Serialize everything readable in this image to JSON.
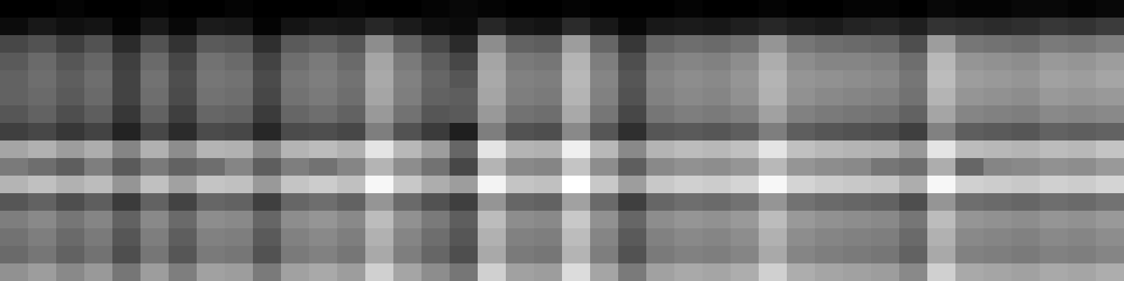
{
  "chart_data": {
    "type": "heatmap",
    "tick_labels": false,
    "grid": false,
    "cells": [
      [
        2,
        2,
        3,
        2,
        2,
        3,
        2,
        2,
        3,
        2,
        2,
        2,
        3,
        2,
        2,
        3,
        4,
        3,
        2,
        2,
        3,
        2,
        2,
        2,
        3,
        2,
        2,
        3,
        2,
        2,
        3,
        3,
        2,
        4,
        3,
        3,
        4,
        4,
        3,
        4
      ],
      [
        5,
        8,
        6,
        7,
        3,
        8,
        4,
        9,
        8,
        3,
        7,
        9,
        8,
        12,
        9,
        6,
        5,
        12,
        8,
        7,
        13,
        8,
        4,
        8,
        9,
        8,
        10,
        12,
        10,
        9,
        11,
        12,
        10,
        15,
        14,
        13,
        14,
        16,
        15,
        17
      ],
      [
        20,
        23,
        18,
        23,
        13,
        23,
        15,
        25,
        24,
        14,
        25,
        27,
        24,
        38,
        27,
        20,
        13,
        38,
        27,
        26,
        42,
        28,
        16,
        28,
        30,
        29,
        31,
        40,
        32,
        30,
        29,
        28,
        22,
        42,
        32,
        31,
        30,
        33,
        32,
        34
      ],
      [
        25,
        29,
        24,
        28,
        18,
        29,
        20,
        31,
        29,
        19,
        30,
        33,
        29,
        44,
        33,
        26,
        20,
        44,
        33,
        32,
        48,
        34,
        22,
        34,
        36,
        35,
        38,
        46,
        38,
        36,
        36,
        35,
        30,
        49,
        40,
        39,
        38,
        41,
        40,
        42
      ],
      [
        27,
        30,
        26,
        30,
        19,
        31,
        22,
        32,
        31,
        21,
        32,
        34,
        31,
        45,
        35,
        28,
        24,
        45,
        35,
        34,
        49,
        36,
        24,
        36,
        38,
        37,
        40,
        48,
        40,
        39,
        38,
        37,
        32,
        50,
        42,
        41,
        40,
        43,
        42,
        44
      ],
      [
        27,
        29,
        25,
        29,
        19,
        30,
        21,
        31,
        30,
        20,
        31,
        33,
        30,
        44,
        34,
        27,
        26,
        44,
        34,
        33,
        48,
        35,
        23,
        35,
        37,
        36,
        39,
        47,
        39,
        37,
        36,
        35,
        31,
        48,
        40,
        39,
        38,
        41,
        40,
        41
      ],
      [
        24,
        27,
        22,
        26,
        16,
        27,
        18,
        28,
        27,
        17,
        28,
        30,
        27,
        41,
        31,
        24,
        25,
        41,
        31,
        30,
        45,
        32,
        20,
        32,
        34,
        33,
        35,
        43,
        35,
        33,
        32,
        31,
        27,
        44,
        36,
        35,
        34,
        37,
        36,
        37
      ],
      [
        18,
        20,
        16,
        19,
        11,
        20,
        13,
        21,
        20,
        12,
        21,
        22,
        20,
        34,
        23,
        17,
        10,
        34,
        23,
        22,
        37,
        24,
        14,
        24,
        25,
        24,
        26,
        34,
        26,
        24,
        23,
        22,
        18,
        35,
        26,
        25,
        24,
        27,
        26,
        27
      ],
      [
        44,
        47,
        42,
        46,
        36,
        47,
        38,
        48,
        47,
        37,
        48,
        50,
        47,
        60,
        49,
        42,
        28,
        60,
        48,
        47,
        63,
        49,
        37,
        48,
        50,
        49,
        51,
        60,
        51,
        49,
        48,
        47,
        41,
        60,
        50,
        49,
        48,
        50,
        49,
        52
      ],
      [
        33,
        30,
        26,
        34,
        25,
        33,
        27,
        30,
        36,
        26,
        34,
        31,
        36,
        48,
        38,
        31,
        20,
        48,
        37,
        36,
        52,
        38,
        26,
        37,
        39,
        38,
        40,
        49,
        40,
        38,
        37,
        32,
        30,
        46,
        28,
        36,
        37,
        39,
        38,
        41
      ],
      [
        48,
        51,
        47,
        50,
        40,
        51,
        43,
        52,
        51,
        41,
        52,
        54,
        51,
        65,
        53,
        46,
        42,
        64,
        52,
        51,
        67,
        53,
        42,
        53,
        55,
        54,
        56,
        65,
        56,
        54,
        53,
        52,
        46,
        65,
        55,
        54,
        53,
        55,
        54,
        56
      ],
      [
        24,
        27,
        22,
        26,
        17,
        27,
        19,
        28,
        27,
        18,
        28,
        30,
        27,
        40,
        29,
        23,
        18,
        40,
        28,
        27,
        43,
        29,
        18,
        28,
        30,
        29,
        31,
        40,
        31,
        29,
        28,
        27,
        22,
        40,
        30,
        29,
        28,
        30,
        29,
        31
      ],
      [
        34,
        37,
        32,
        36,
        27,
        37,
        29,
        38,
        37,
        28,
        38,
        40,
        37,
        50,
        39,
        33,
        26,
        50,
        38,
        37,
        53,
        39,
        28,
        38,
        40,
        39,
        41,
        50,
        41,
        39,
        38,
        37,
        32,
        50,
        40,
        39,
        38,
        40,
        39,
        41
      ],
      [
        31,
        34,
        29,
        33,
        24,
        34,
        26,
        35,
        34,
        25,
        35,
        37,
        34,
        47,
        36,
        30,
        24,
        47,
        35,
        34,
        50,
        36,
        25,
        35,
        37,
        36,
        38,
        47,
        38,
        36,
        35,
        34,
        29,
        47,
        37,
        36,
        35,
        37,
        36,
        38
      ],
      [
        29,
        32,
        27,
        31,
        22,
        32,
        24,
        33,
        32,
        23,
        33,
        35,
        32,
        45,
        34,
        28,
        22,
        45,
        33,
        32,
        48,
        34,
        23,
        33,
        35,
        34,
        36,
        45,
        36,
        34,
        33,
        32,
        27,
        45,
        35,
        34,
        33,
        35,
        34,
        36
      ],
      [
        39,
        42,
        37,
        41,
        32,
        42,
        34,
        43,
        42,
        33,
        43,
        45,
        42,
        55,
        44,
        38,
        32,
        55,
        43,
        42,
        58,
        44,
        33,
        43,
        45,
        44,
        46,
        55,
        46,
        44,
        43,
        42,
        37,
        55,
        45,
        44,
        43,
        45,
        44,
        46
      ]
    ]
  }
}
